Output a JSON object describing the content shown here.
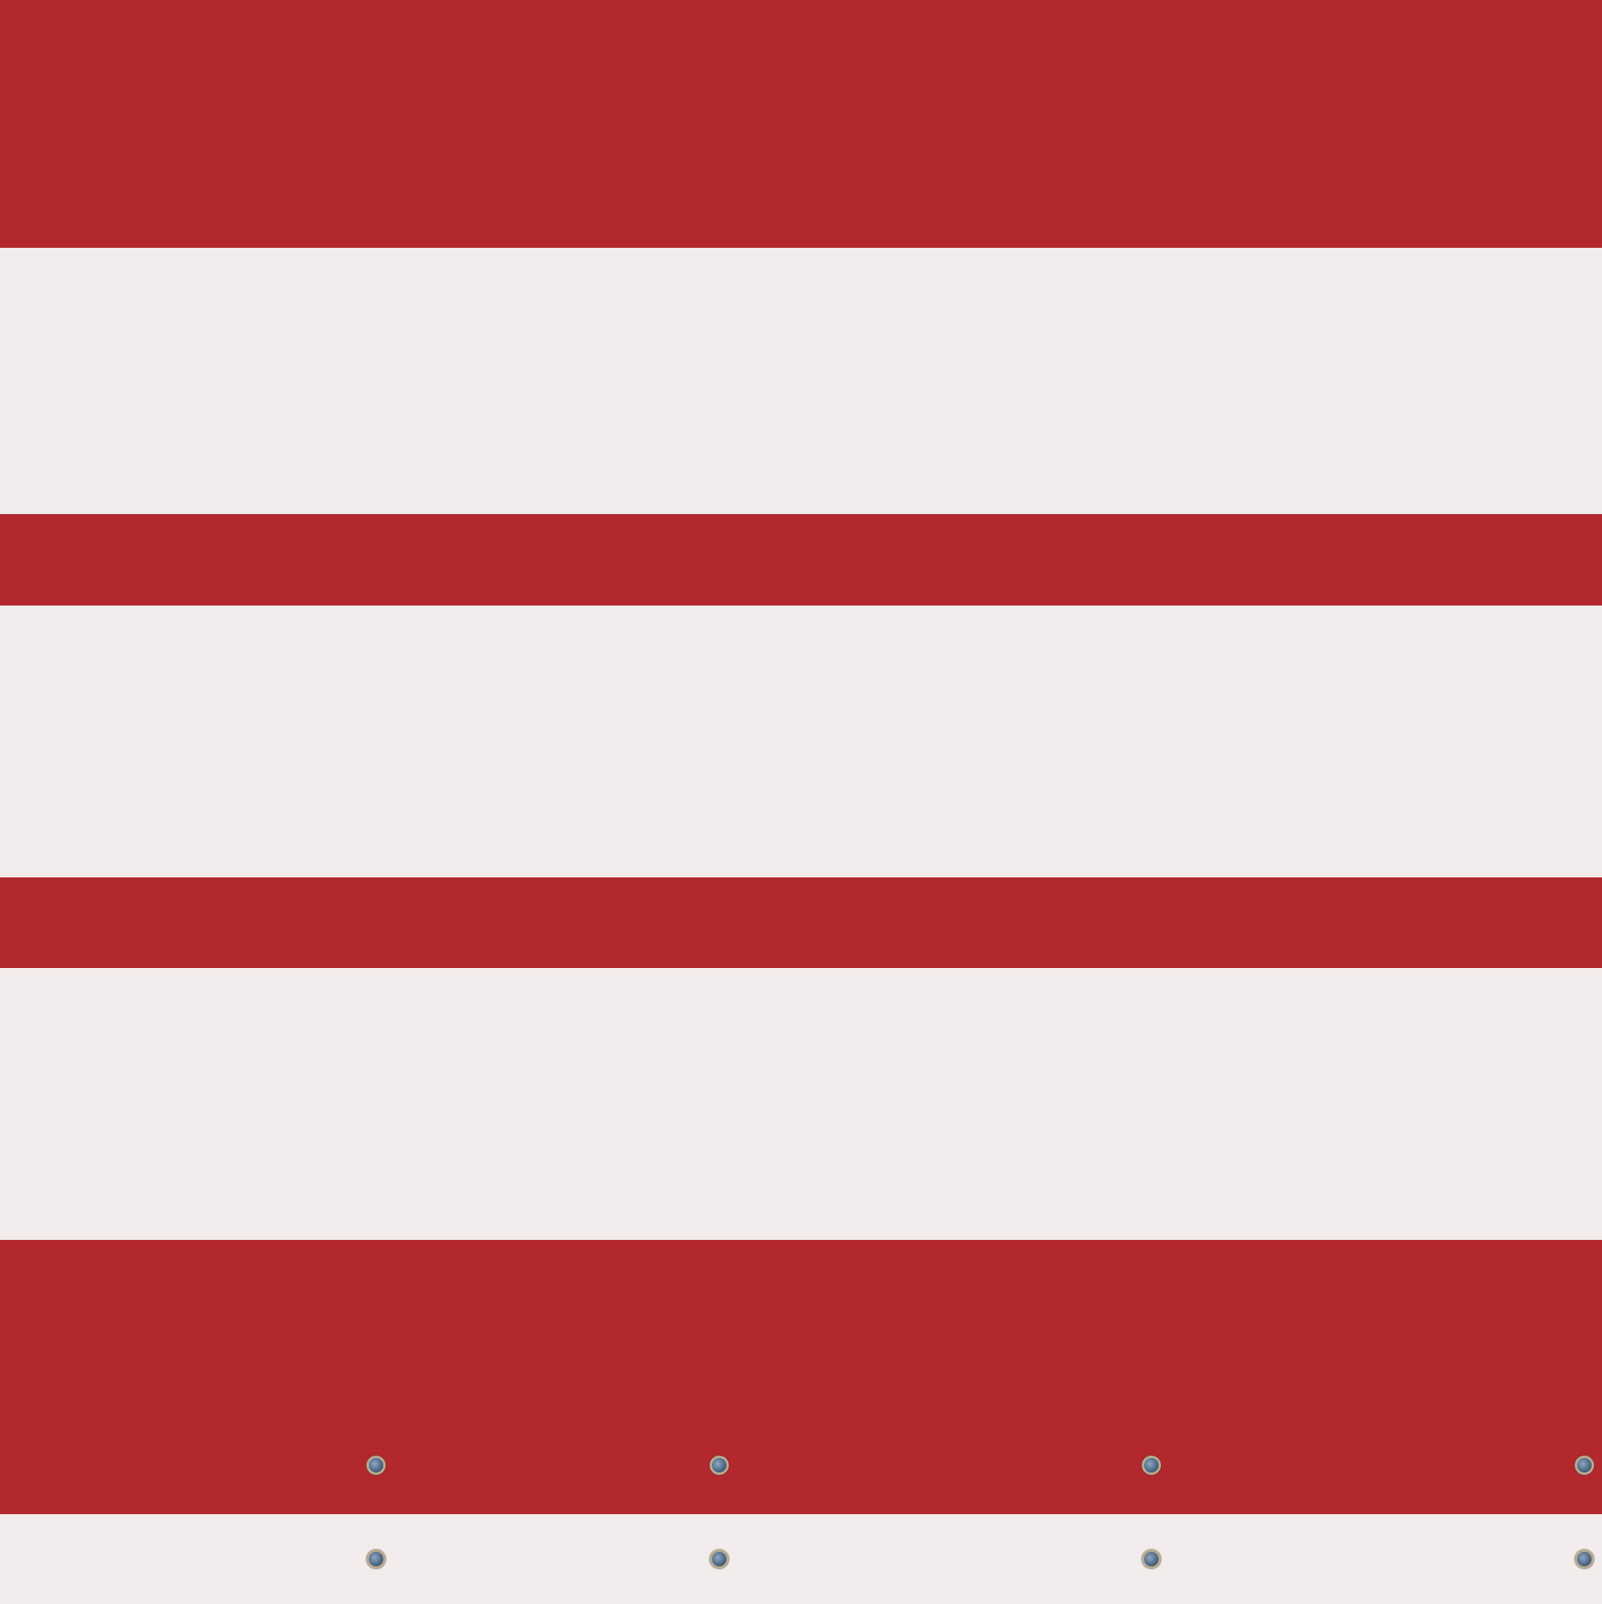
{
  "scene": {
    "description_colors": {
      "red_stripe": "#b3282d",
      "white_stripe": "#f3ecec",
      "grommet_ring": "#b9aa8f",
      "grommet_center": "#4f6b8a"
    },
    "stripes": [
      {
        "color": "red"
      },
      {
        "color": "white"
      },
      {
        "color": "red"
      },
      {
        "color": "white"
      },
      {
        "color": "red"
      },
      {
        "color": "white"
      },
      {
        "color": "red"
      },
      {
        "color": "white"
      }
    ],
    "grommets": {
      "icon": "grommet-icon",
      "count": 8
    }
  }
}
